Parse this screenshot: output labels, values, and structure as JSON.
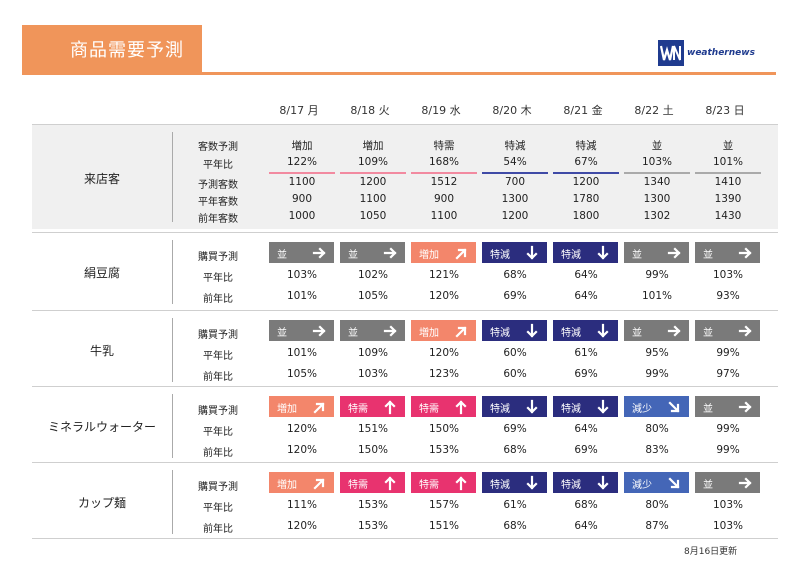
{
  "title": "商品需要予測",
  "logo": {
    "text": "weathernews",
    "icon": "wni-logo"
  },
  "dates": [
    "8/17 月",
    "8/18 火",
    "8/19 水",
    "8/20 木",
    "8/21 金",
    "8/22 土",
    "8/23 日"
  ],
  "colors": {
    "header": "#f0955a",
    "increase": "#f3866b",
    "special_demand": "#e8336f",
    "special_decrease": "#2b2d7e",
    "decrease": "#4466b7",
    "normal": "#7a7a7a",
    "underline_increase": "#f28aa0",
    "underline_decrease": "#3f4aa6",
    "underline_normal": "#aaaaaa"
  },
  "visitors": {
    "label": "来店客",
    "row_labels": [
      "客数予測",
      "平年比",
      "予測客数",
      "平年客数",
      "前年客数"
    ],
    "forecast": [
      "増加",
      "増加",
      "特需",
      "特減",
      "特減",
      "並",
      "並"
    ],
    "ratio": [
      "122%",
      "109%",
      "168%",
      "54%",
      "67%",
      "103%",
      "101%"
    ],
    "predicted": [
      "1100",
      "1200",
      "1512",
      "700",
      "1200",
      "1340",
      "1410"
    ],
    "normal_year": [
      "900",
      "1100",
      "900",
      "1300",
      "1780",
      "1300",
      "1390"
    ],
    "last_year": [
      "1000",
      "1050",
      "1100",
      "1200",
      "1800",
      "1302",
      "1430"
    ]
  },
  "products": [
    {
      "name": "絹豆腐",
      "row_labels": [
        "購買予測",
        "平年比",
        "前年比"
      ],
      "badges": [
        {
          "text": "並",
          "type": "normal",
          "arrow": "right"
        },
        {
          "text": "並",
          "type": "normal",
          "arrow": "right"
        },
        {
          "text": "増加",
          "type": "increase",
          "arrow": "up-right"
        },
        {
          "text": "特減",
          "type": "special_decrease",
          "arrow": "down"
        },
        {
          "text": "特減",
          "type": "special_decrease",
          "arrow": "down"
        },
        {
          "text": "並",
          "type": "normal",
          "arrow": "right"
        },
        {
          "text": "並",
          "type": "normal",
          "arrow": "right"
        }
      ],
      "vs_normal": [
        "103%",
        "102%",
        "121%",
        "68%",
        "64%",
        "99%",
        "103%"
      ],
      "vs_last": [
        "101%",
        "105%",
        "120%",
        "69%",
        "64%",
        "101%",
        "93%"
      ]
    },
    {
      "name": "牛乳",
      "row_labels": [
        "購買予測",
        "平年比",
        "前年比"
      ],
      "badges": [
        {
          "text": "並",
          "type": "normal",
          "arrow": "right"
        },
        {
          "text": "並",
          "type": "normal",
          "arrow": "right"
        },
        {
          "text": "増加",
          "type": "increase",
          "arrow": "up-right"
        },
        {
          "text": "特減",
          "type": "special_decrease",
          "arrow": "down"
        },
        {
          "text": "特減",
          "type": "special_decrease",
          "arrow": "down"
        },
        {
          "text": "並",
          "type": "normal",
          "arrow": "right"
        },
        {
          "text": "並",
          "type": "normal",
          "arrow": "right"
        }
      ],
      "vs_normal": [
        "101%",
        "109%",
        "120%",
        "60%",
        "61%",
        "95%",
        "99%"
      ],
      "vs_last": [
        "105%",
        "103%",
        "123%",
        "60%",
        "69%",
        "99%",
        "97%"
      ]
    },
    {
      "name": "ミネラルウォーター",
      "row_labels": [
        "購買予測",
        "平年比",
        "前年比"
      ],
      "badges": [
        {
          "text": "増加",
          "type": "increase",
          "arrow": "up-right"
        },
        {
          "text": "特需",
          "type": "special_demand",
          "arrow": "up"
        },
        {
          "text": "特需",
          "type": "special_demand",
          "arrow": "up"
        },
        {
          "text": "特減",
          "type": "special_decrease",
          "arrow": "down"
        },
        {
          "text": "特減",
          "type": "special_decrease",
          "arrow": "down"
        },
        {
          "text": "減少",
          "type": "decrease",
          "arrow": "down-right"
        },
        {
          "text": "並",
          "type": "normal",
          "arrow": "right"
        }
      ],
      "vs_normal": [
        "120%",
        "151%",
        "150%",
        "69%",
        "64%",
        "80%",
        "99%"
      ],
      "vs_last": [
        "120%",
        "150%",
        "153%",
        "68%",
        "69%",
        "83%",
        "99%"
      ]
    },
    {
      "name": "カップ麺",
      "row_labels": [
        "購買予測",
        "平年比",
        "前年比"
      ],
      "badges": [
        {
          "text": "増加",
          "type": "increase",
          "arrow": "up-right"
        },
        {
          "text": "特需",
          "type": "special_demand",
          "arrow": "up"
        },
        {
          "text": "特需",
          "type": "special_demand",
          "arrow": "up"
        },
        {
          "text": "特減",
          "type": "special_decrease",
          "arrow": "down"
        },
        {
          "text": "特減",
          "type": "special_decrease",
          "arrow": "down"
        },
        {
          "text": "減少",
          "type": "decrease",
          "arrow": "down-right"
        },
        {
          "text": "並",
          "type": "normal",
          "arrow": "right"
        }
      ],
      "vs_normal": [
        "111%",
        "153%",
        "157%",
        "61%",
        "68%",
        "80%",
        "103%"
      ],
      "vs_last": [
        "120%",
        "153%",
        "151%",
        "68%",
        "64%",
        "87%",
        "103%"
      ]
    }
  ],
  "updated": "8月16日更新"
}
